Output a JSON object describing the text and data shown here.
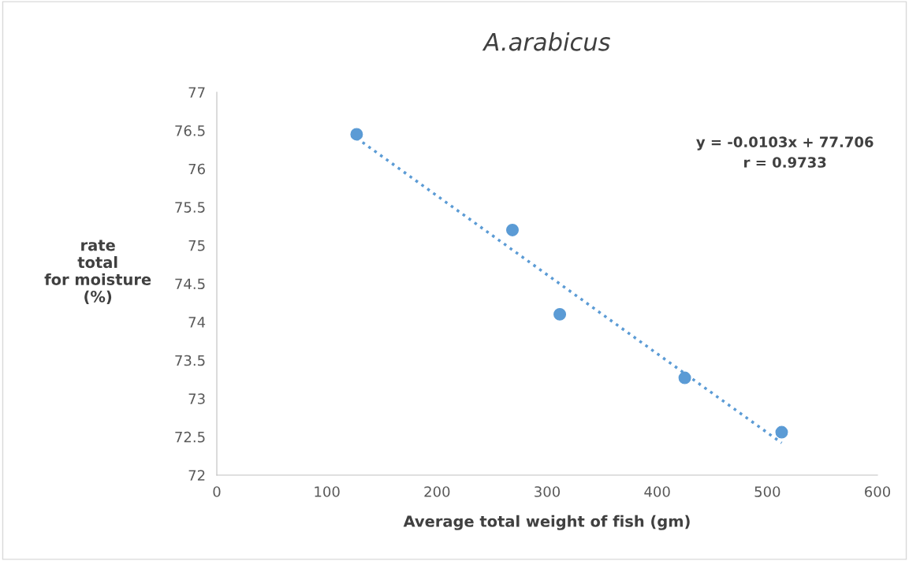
{
  "chart_data": {
    "type": "scatter",
    "title": "A.arabicus",
    "xlabel": "Average total weight of fish (gm)",
    "ylabel": "rate\ntotal\nfor moisture\n(%)",
    "x": [
      127,
      268.5,
      311.5,
      425,
      513
    ],
    "series": [
      {
        "color": "#5b9bd5",
        "values": [
          76.45,
          75.2,
          74.1,
          73.27,
          72.56
        ],
        "marker": "circle"
      },
      {
        "type": "line",
        "color": "#5b9bd5",
        "x": [
          127,
          513
        ],
        "values": [
          76.4,
          72.42
        ],
        "line_style": "dotted",
        "marker": "none"
      }
    ],
    "annotations": [
      "y = -0.0103x + 77.706\nr = 0.9733"
    ],
    "xlim": [
      0,
      600
    ],
    "xticks": [
      0,
      100,
      200,
      300,
      400,
      500,
      600
    ],
    "ylim": [
      72,
      77
    ],
    "yticks": [
      72,
      72.5,
      73,
      73.5,
      74,
      74.5,
      75,
      75.5,
      76,
      76.5,
      77
    ],
    "grid": false
  }
}
